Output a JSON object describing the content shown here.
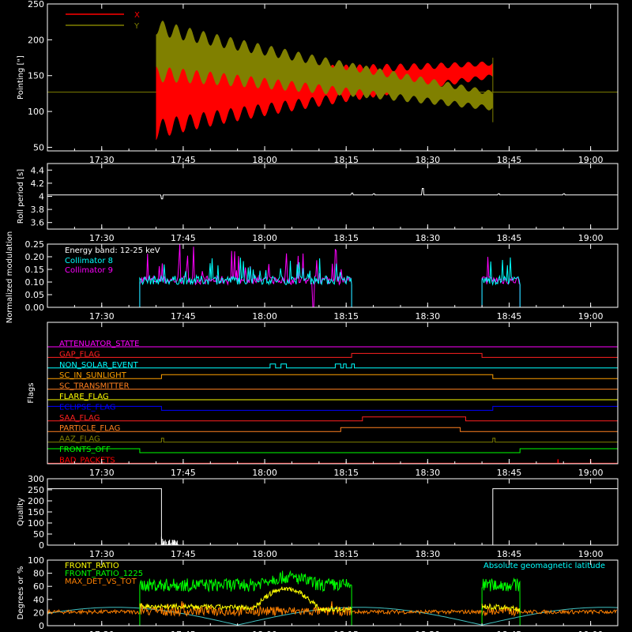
{
  "time_axis": {
    "start": "17:20",
    "end": "19:05",
    "ticks": [
      "17:30",
      "17:45",
      "18:00",
      "18:15",
      "18:30",
      "18:45",
      "19:00"
    ]
  },
  "chart_data": [
    {
      "name": "pointing",
      "type": "line",
      "ylabel": "Pointing [\"]",
      "ylim": [
        45,
        250
      ],
      "yticks": [
        50,
        100,
        150,
        200,
        250
      ],
      "series": [
        {
          "name": "X",
          "color": "#ff0000",
          "start": "17:40",
          "end": "18:42",
          "center_start": 115,
          "center_end": 158,
          "amp_start": 55,
          "amp_end": 12,
          "period_min": 2.5
        },
        {
          "name": "Y",
          "color": "#808000",
          "start": "17:40",
          "end": "18:42",
          "center_start": 185,
          "center_end": 115,
          "amp_start": 45,
          "amp_end": 14,
          "period_min": 2.5
        }
      ],
      "baseline": {
        "value": 127,
        "color": "#808000"
      }
    },
    {
      "name": "roll_period",
      "type": "line",
      "ylabel": "Roll period [s]",
      "ylim": [
        3.5,
        4.5
      ],
      "yticks": [
        3.6,
        3.8,
        4.0,
        4.2,
        4.4
      ],
      "color": "#ffffff",
      "baseline": 4.02,
      "start": "17:20",
      "end": "19:05",
      "spikes": [
        {
          "t": "17:41",
          "v": 3.96
        },
        {
          "t": "18:16",
          "v": 4.05
        },
        {
          "t": "18:20",
          "v": 4.04
        },
        {
          "t": "18:29",
          "v": 4.12
        },
        {
          "t": "18:43",
          "v": 4.04
        },
        {
          "t": "18:55",
          "v": 4.04
        }
      ]
    },
    {
      "name": "modulation",
      "type": "line",
      "ylabel": "Normalized modulation",
      "ylim": [
        0,
        0.25
      ],
      "yticks": [
        "0.00",
        "0.05",
        "0.10",
        "0.15",
        "0.20",
        "0.25"
      ],
      "legend_title": "Energy band: 12-25 keV",
      "series": [
        {
          "name": "Collimator 8",
          "color": "#00ffff"
        },
        {
          "name": "Collimator 9",
          "color": "#ff00ff"
        }
      ],
      "segments": [
        [
          "17:37",
          "18:16"
        ],
        [
          "18:40",
          "18:47"
        ]
      ],
      "base": 0.09,
      "dip": "18:09"
    },
    {
      "name": "flags",
      "type": "line",
      "ylabel": "Flags",
      "flags": [
        {
          "label": "ATTENUATOR_STATE",
          "color": "#ff00ff",
          "on": []
        },
        {
          "label": "GAP_FLAG",
          "color": "#ff2020",
          "on": [
            [
              "18:16",
              "18:40"
            ]
          ]
        },
        {
          "label": "NON_SOLAR_EVENT",
          "color": "#00ffff",
          "on": [
            [
              "18:01",
              "18:02"
            ],
            [
              "18:03",
              "18:04"
            ],
            [
              "18:13",
              "18:14"
            ],
            [
              "18:14.5",
              "18:15"
            ],
            [
              "18:16",
              "18:16.5"
            ]
          ]
        },
        {
          "label": "SC_IN_SUNLIGHT",
          "color": "#ffa000",
          "on": [
            [
              "17:41",
              "18:42"
            ]
          ]
        },
        {
          "label": "SC_TRANSMITTER",
          "color": "#ff8020",
          "on": []
        },
        {
          "label": "FLARE_FLAG",
          "color": "#ffff00",
          "on": []
        },
        {
          "label": "ECLIPSE_FLAG",
          "color": "#0000ff",
          "on": [
            [
              "17:20",
              "17:41"
            ],
            [
              "18:42",
              "19:05"
            ]
          ]
        },
        {
          "label": "SAA_FLAG",
          "color": "#ff2020",
          "on": [
            [
              "18:18",
              "18:37"
            ]
          ]
        },
        {
          "label": "PARTICLE_FLAG",
          "color": "#ff8020",
          "on": [
            [
              "18:14",
              "18:36"
            ]
          ]
        },
        {
          "label": "AAZ_FLAG",
          "color": "#808000",
          "on": [
            [
              "17:41",
              "17:41.4"
            ],
            [
              "18:42",
              "18:42.4"
            ]
          ]
        },
        {
          "label": "FRONTS_OFF",
          "color": "#00ff00",
          "on": [
            [
              "17:20",
              "17:37"
            ],
            [
              "18:47",
              "19:05"
            ]
          ]
        },
        {
          "label": "BAD_PACKETS",
          "color": "#ff0000",
          "spikes": [
            "18:54",
            "19:00"
          ]
        }
      ]
    },
    {
      "name": "quality",
      "type": "line",
      "ylabel": "Quality",
      "ylim": [
        0,
        300
      ],
      "yticks": [
        0,
        50,
        100,
        150,
        200,
        250,
        300
      ],
      "color": "#ffffff",
      "level": 255,
      "high": [
        [
          "17:20",
          "17:41"
        ],
        [
          "18:42",
          "19:05"
        ]
      ],
      "noise_start": "17:41",
      "noise_end": "17:44",
      "noise_max": 40
    },
    {
      "name": "ratios",
      "type": "line",
      "ylabel": "Degrees or %",
      "ylim": [
        0,
        100
      ],
      "yticks": [
        0,
        20,
        40,
        60,
        80,
        100
      ],
      "annotation": "Absolute geomagnetic latitude",
      "annotation_color": "#00ffff",
      "segments": [
        [
          "17:37",
          "18:16"
        ],
        [
          "18:40",
          "18:47"
        ]
      ],
      "series": [
        {
          "name": "FRONT_RATIO",
          "color": "#ffff00"
        },
        {
          "name": "FRONT_RATIO_1225",
          "color": "#00ff00",
          "level": 62
        },
        {
          "name": "MAX_DET_VS_TOT",
          "color": "#ff8000",
          "level": 20
        }
      ],
      "geomag_color": "#40c0c0"
    }
  ]
}
